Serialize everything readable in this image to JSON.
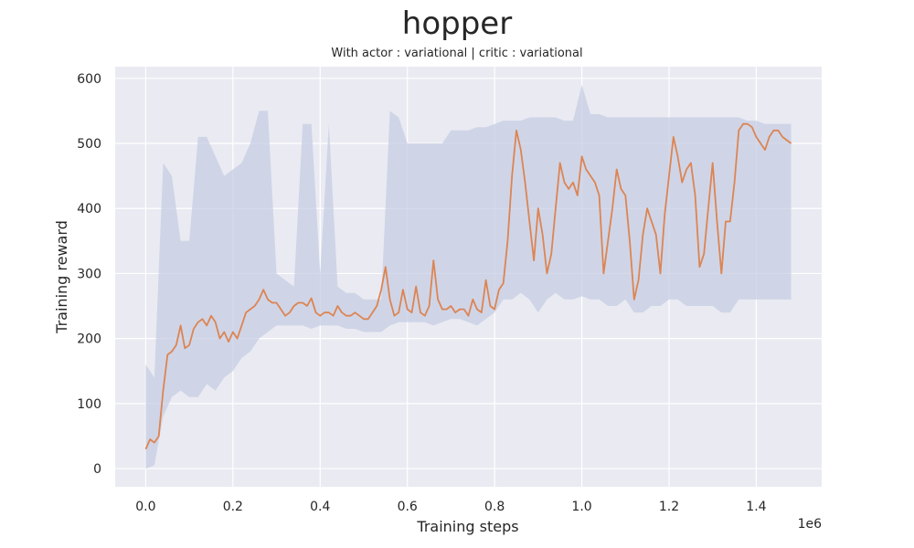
{
  "figure": {
    "title": "hopper",
    "subtitle": "With actor : variational | critic : variational"
  },
  "chart_data": {
    "type": "line",
    "title": "hopper",
    "subtitle": "With actor : variational | critic : variational",
    "xlabel": "Training steps",
    "ylabel": "Training reward",
    "x_offset_label": "1e6",
    "xlim": [
      -0.07,
      1.55
    ],
    "ylim": [
      -28,
      618
    ],
    "xticks": [
      0.0,
      0.2,
      0.4,
      0.6,
      0.8,
      1.0,
      1.2,
      1.4
    ],
    "xtick_labels": [
      "0.0",
      "0.2",
      "0.4",
      "0.6",
      "0.8",
      "1.0",
      "1.2",
      "1.4"
    ],
    "yticks": [
      0,
      100,
      200,
      300,
      400,
      500,
      600
    ],
    "ytick_labels": [
      "0",
      "100",
      "200",
      "300",
      "400",
      "500",
      "600"
    ],
    "grid": true,
    "colors": {
      "background": "#eaeaf2",
      "grid": "#ffffff",
      "band": "#c5cde3",
      "line": "#dd8452"
    },
    "series": [
      {
        "style": "band",
        "x": [
          0.0,
          0.02,
          0.04,
          0.06,
          0.08,
          0.1,
          0.12,
          0.14,
          0.16,
          0.18,
          0.2,
          0.22,
          0.24,
          0.26,
          0.28,
          0.3,
          0.32,
          0.34,
          0.36,
          0.38,
          0.4,
          0.42,
          0.44,
          0.46,
          0.48,
          0.5,
          0.52,
          0.54,
          0.56,
          0.58,
          0.6,
          0.62,
          0.64,
          0.66,
          0.68,
          0.7,
          0.72,
          0.74,
          0.76,
          0.78,
          0.8,
          0.82,
          0.84,
          0.86,
          0.88,
          0.9,
          0.92,
          0.94,
          0.96,
          0.98,
          1.0,
          1.02,
          1.04,
          1.06,
          1.08,
          1.1,
          1.12,
          1.14,
          1.16,
          1.18,
          1.2,
          1.22,
          1.24,
          1.26,
          1.28,
          1.3,
          1.32,
          1.34,
          1.36,
          1.38,
          1.4,
          1.42,
          1.44,
          1.46,
          1.48
        ],
        "low": [
          0,
          5,
          80,
          110,
          120,
          110,
          110,
          130,
          120,
          140,
          150,
          170,
          180,
          200,
          210,
          220,
          220,
          220,
          220,
          215,
          220,
          220,
          220,
          215,
          215,
          210,
          210,
          210,
          220,
          225,
          225,
          225,
          225,
          220,
          225,
          230,
          230,
          225,
          220,
          230,
          240,
          260,
          260,
          270,
          260,
          240,
          260,
          270,
          260,
          260,
          265,
          260,
          260,
          250,
          250,
          260,
          240,
          240,
          250,
          250,
          260,
          260,
          250,
          250,
          250,
          250,
          240,
          240,
          260,
          260,
          260,
          260,
          260,
          260,
          260
        ],
        "high": [
          160,
          140,
          470,
          450,
          350,
          350,
          510,
          510,
          480,
          450,
          460,
          470,
          500,
          550,
          550,
          300,
          290,
          280,
          530,
          530,
          300,
          530,
          280,
          270,
          270,
          260,
          260,
          260,
          550,
          540,
          500,
          500,
          500,
          500,
          500,
          520,
          520,
          520,
          525,
          525,
          530,
          535,
          535,
          535,
          540,
          540,
          540,
          540,
          535,
          535,
          590,
          545,
          545,
          540,
          540,
          540,
          540,
          540,
          540,
          540,
          540,
          540,
          540,
          540,
          540,
          540,
          540,
          540,
          540,
          535,
          535,
          530,
          530,
          530,
          530
        ]
      },
      {
        "style": "line",
        "x": [
          0.0,
          0.01,
          0.02,
          0.03,
          0.04,
          0.05,
          0.06,
          0.07,
          0.08,
          0.09,
          0.1,
          0.11,
          0.12,
          0.13,
          0.14,
          0.15,
          0.16,
          0.17,
          0.18,
          0.19,
          0.2,
          0.21,
          0.22,
          0.23,
          0.24,
          0.25,
          0.26,
          0.27,
          0.28,
          0.29,
          0.3,
          0.31,
          0.32,
          0.33,
          0.34,
          0.35,
          0.36,
          0.37,
          0.38,
          0.39,
          0.4,
          0.41,
          0.42,
          0.43,
          0.44,
          0.45,
          0.46,
          0.47,
          0.48,
          0.49,
          0.5,
          0.51,
          0.52,
          0.53,
          0.54,
          0.55,
          0.56,
          0.57,
          0.58,
          0.59,
          0.6,
          0.61,
          0.62,
          0.63,
          0.64,
          0.65,
          0.66,
          0.67,
          0.68,
          0.69,
          0.7,
          0.71,
          0.72,
          0.73,
          0.74,
          0.75,
          0.76,
          0.77,
          0.78,
          0.79,
          0.8,
          0.81,
          0.82,
          0.83,
          0.84,
          0.85,
          0.86,
          0.87,
          0.88,
          0.89,
          0.9,
          0.91,
          0.92,
          0.93,
          0.94,
          0.95,
          0.96,
          0.97,
          0.98,
          0.99,
          1.0,
          1.01,
          1.02,
          1.03,
          1.04,
          1.05,
          1.06,
          1.07,
          1.08,
          1.09,
          1.1,
          1.11,
          1.12,
          1.13,
          1.14,
          1.15,
          1.16,
          1.17,
          1.18,
          1.19,
          1.2,
          1.21,
          1.22,
          1.23,
          1.24,
          1.25,
          1.26,
          1.27,
          1.28,
          1.29,
          1.3,
          1.31,
          1.32,
          1.33,
          1.34,
          1.35,
          1.36,
          1.37,
          1.38,
          1.39,
          1.4,
          1.41,
          1.42,
          1.43,
          1.44,
          1.45,
          1.46,
          1.47,
          1.48
        ],
        "y": [
          30,
          45,
          40,
          50,
          120,
          175,
          180,
          190,
          220,
          185,
          190,
          215,
          225,
          230,
          220,
          235,
          225,
          200,
          210,
          195,
          210,
          200,
          220,
          240,
          245,
          250,
          260,
          275,
          260,
          255,
          255,
          245,
          235,
          240,
          250,
          255,
          255,
          250,
          262,
          240,
          235,
          240,
          240,
          235,
          250,
          240,
          235,
          235,
          240,
          235,
          230,
          230,
          240,
          250,
          275,
          310,
          260,
          235,
          240,
          275,
          245,
          240,
          280,
          240,
          235,
          250,
          320,
          260,
          245,
          245,
          250,
          240,
          245,
          245,
          235,
          260,
          245,
          240,
          290,
          250,
          245,
          275,
          285,
          350,
          450,
          520,
          490,
          440,
          380,
          320,
          400,
          360,
          300,
          330,
          400,
          470,
          440,
          430,
          440,
          420,
          480,
          460,
          450,
          440,
          420,
          300,
          350,
          400,
          460,
          430,
          420,
          350,
          260,
          290,
          360,
          400,
          380,
          360,
          300,
          390,
          450,
          510,
          480,
          440,
          460,
          470,
          420,
          310,
          330,
          400,
          470,
          380,
          300,
          380,
          380,
          440,
          520,
          530,
          530,
          525,
          510,
          500,
          490,
          510,
          520,
          520,
          510,
          505,
          500
        ]
      }
    ]
  }
}
